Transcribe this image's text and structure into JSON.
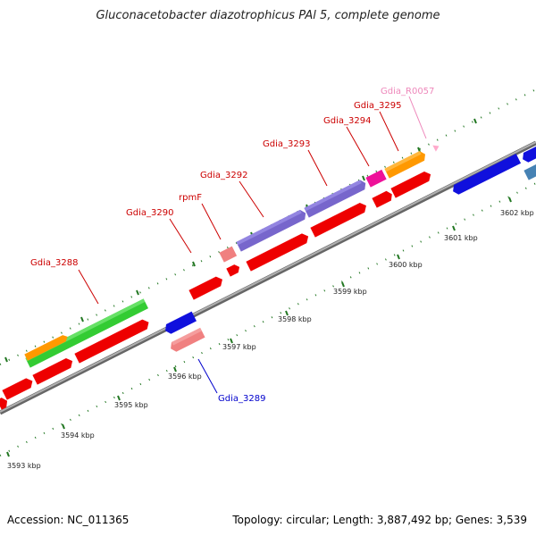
{
  "title": "Gluconacetobacter diazotrophicus PAl 5, complete genome",
  "accession": "Accession: NC_011365",
  "summary": "Topology: circular; Length: 3,887,492 bp; Genes: 3,539",
  "colors": {
    "backbone": "#909090",
    "red": "#ee0000",
    "salmon": "#f08080",
    "blue": "#1010dd",
    "green": "#33cc33",
    "orange": "#ff9900",
    "purple": "#7766cc",
    "magenta": "#ee1199",
    "steel": "#4682b4",
    "pink": "#ffaacc",
    "tick": "#227722",
    "label_red": "#cc0000",
    "label_blue": "#0000cc",
    "label_pink": "#ee88bb"
  },
  "ticks": [
    "3593 kbp",
    "3594 kbp",
    "3595 kbp",
    "3596 kbp",
    "3597 kbp",
    "3598 kbp",
    "3599 kbp",
    "3600 kbp",
    "3601 kbp",
    "3602 kbp"
  ],
  "gene_labels": {
    "gdia_3288": "Gdia_3288",
    "gdia_3289": "Gdia_3289",
    "gdia_3290": "Gdia_3290",
    "rpmf": "rpmF",
    "gdia_3292": "Gdia_3292",
    "gdia_3293": "Gdia_3293",
    "gdia_3294": "Gdia_3294",
    "gdia_3295": "Gdia_3295",
    "gdia_r0057": "Gdia_R0057"
  }
}
